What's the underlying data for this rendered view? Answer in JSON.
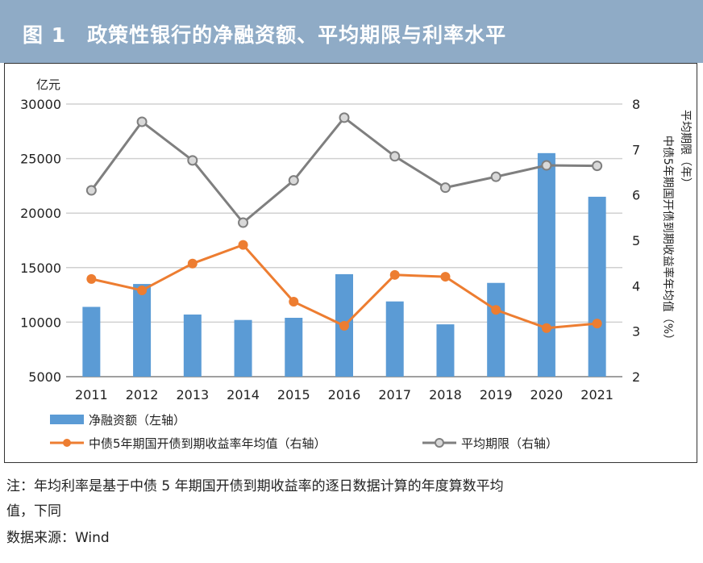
{
  "title": "图 1　政策性银行的净融资额、平均期限与利率水平",
  "chart_data": {
    "type": "bar+line",
    "categories": [
      "2011",
      "2012",
      "2013",
      "2014",
      "2015",
      "2016",
      "2017",
      "2018",
      "2019",
      "2020",
      "2021"
    ],
    "left_axis": {
      "unit_label": "亿元",
      "range": [
        5000,
        30000
      ],
      "ticks": [
        "5000",
        "10000",
        "15000",
        "20000",
        "25000",
        "30000"
      ]
    },
    "right_axis": {
      "label_1": "中债5年期国开债到期收益率年均值（%）",
      "label_2": "平均期限（年）",
      "range": [
        2,
        8
      ],
      "ticks": [
        "2",
        "3",
        "4",
        "5",
        "6",
        "7",
        "8"
      ]
    },
    "grid": true,
    "series": [
      {
        "name": "净融资额（左轴）",
        "type": "bar",
        "axis": "left",
        "color": "#5b9bd5",
        "values": [
          11400,
          13500,
          10700,
          10200,
          10400,
          14400,
          11900,
          9800,
          13600,
          25500,
          21500
        ]
      },
      {
        "name": "中债5年期国开债到期收益率年均值（右轴）",
        "type": "line",
        "axis": "right",
        "color": "#ed7d31",
        "values": [
          4.15,
          3.9,
          4.49,
          4.9,
          3.65,
          3.12,
          4.24,
          4.2,
          3.47,
          3.07,
          3.17
        ]
      },
      {
        "name": "平均期限（右轴）",
        "type": "line",
        "axis": "right",
        "color": "#7f7f7f",
        "values": [
          6.1,
          7.61,
          6.76,
          5.39,
          6.32,
          7.7,
          6.85,
          6.16,
          6.4,
          6.65,
          6.64
        ]
      }
    ],
    "legend_position": "bottom"
  },
  "notes": {
    "line1": "注：年均利率是基于中债 5 年期国开债到期收益率的逐日数据计算的年度算数平均",
    "line2": "值，下同",
    "source": "数据来源：Wind"
  }
}
